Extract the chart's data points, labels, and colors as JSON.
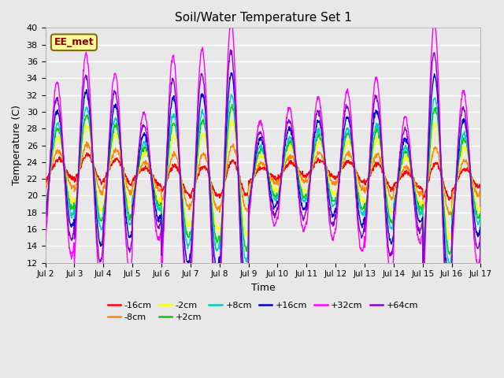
{
  "title": "Soil/Water Temperature Set 1",
  "xlabel": "Time",
  "ylabel": "Temperature (C)",
  "ylim": [
    12,
    40
  ],
  "yticks": [
    12,
    14,
    16,
    18,
    20,
    22,
    24,
    26,
    28,
    30,
    32,
    34,
    36,
    38,
    40
  ],
  "xtick_labels": [
    "Jul 2",
    "Jul 3",
    "Jul 4",
    "Jul 5",
    "Jul 6",
    "Jul 7",
    "Jul 8",
    "Jul 9",
    "Jul 10",
    "Jul 11",
    "Jul 12",
    "Jul 13",
    "Jul 14",
    "Jul 15",
    "Jul 16",
    "Jul 17"
  ],
  "annotation_text": "EE_met",
  "annotation_color": "#8B0000",
  "annotation_bg": "#FFFF99",
  "annotation_border": "#8B6914",
  "series": [
    {
      "label": "-16cm",
      "color": "#FF0000"
    },
    {
      "label": "-8cm",
      "color": "#FF8800"
    },
    {
      "label": "-2cm",
      "color": "#FFFF00"
    },
    {
      "label": "+2cm",
      "color": "#00CC00"
    },
    {
      "label": "+8cm",
      "color": "#00CCCC"
    },
    {
      "label": "+16cm",
      "color": "#0000CC"
    },
    {
      "label": "+32cm",
      "color": "#FF00FF"
    },
    {
      "label": "+64cm",
      "color": "#8800CC"
    }
  ],
  "bg_color": "#E8E8E8",
  "plot_bg_color": "#E8E8E8",
  "grid_color": "#FFFFFF",
  "linewidth": 1.0,
  "fig_bg_color": "#E8E8E8"
}
